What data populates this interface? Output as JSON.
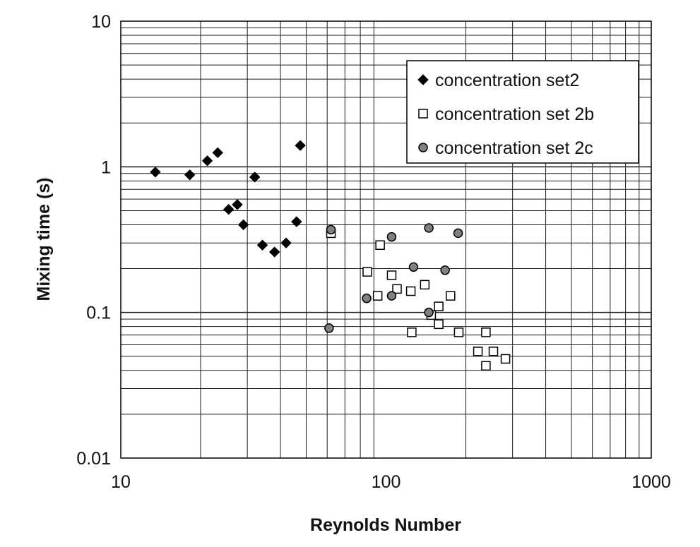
{
  "chart_data": {
    "type": "scatter",
    "xlabel": "Reynolds Number",
    "ylabel": "Mixing time (s)",
    "xscale": "log",
    "yscale": "log",
    "xlim": [
      10,
      1000
    ],
    "ylim": [
      0.01,
      10
    ],
    "x_ticks": [
      {
        "value": 10,
        "label": "10"
      },
      {
        "value": 100,
        "label": "100"
      },
      {
        "value": 1000,
        "label": "1000"
      }
    ],
    "y_ticks": [
      {
        "value": 0.01,
        "label": "0.01"
      },
      {
        "value": 0.1,
        "label": "0.1"
      },
      {
        "value": 1,
        "label": "1"
      },
      {
        "value": 10,
        "label": "10"
      }
    ],
    "grid": true,
    "legend_position": "top-right",
    "series": [
      {
        "name": "concentration set2",
        "marker": "diamond",
        "color": "#000000",
        "points": [
          {
            "x": 13.5,
            "y": 0.92
          },
          {
            "x": 18.2,
            "y": 0.88
          },
          {
            "x": 21.2,
            "y": 1.1
          },
          {
            "x": 23.2,
            "y": 1.25
          },
          {
            "x": 25.5,
            "y": 0.51
          },
          {
            "x": 27.5,
            "y": 0.55
          },
          {
            "x": 29.0,
            "y": 0.4
          },
          {
            "x": 32.0,
            "y": 0.85
          },
          {
            "x": 34.2,
            "y": 0.29
          },
          {
            "x": 38.0,
            "y": 0.26
          },
          {
            "x": 42.0,
            "y": 0.3
          },
          {
            "x": 46.0,
            "y": 0.42
          },
          {
            "x": 47.5,
            "y": 1.4
          }
        ]
      },
      {
        "name": "concentration set 2b",
        "marker": "square",
        "color": "#ffffff",
        "points": [
          {
            "x": 62.0,
            "y": 0.35
          },
          {
            "x": 85.0,
            "y": 0.19
          },
          {
            "x": 93.0,
            "y": 0.13
          },
          {
            "x": 95.0,
            "y": 0.29
          },
          {
            "x": 105.0,
            "y": 0.18
          },
          {
            "x": 110.0,
            "y": 0.145
          },
          {
            "x": 124.0,
            "y": 0.14
          },
          {
            "x": 125.0,
            "y": 0.073
          },
          {
            "x": 140.0,
            "y": 0.155
          },
          {
            "x": 148.0,
            "y": 0.096
          },
          {
            "x": 158.0,
            "y": 0.083
          },
          {
            "x": 158.0,
            "y": 0.11
          },
          {
            "x": 175.0,
            "y": 0.13
          },
          {
            "x": 188.0,
            "y": 0.073
          },
          {
            "x": 222.0,
            "y": 0.054
          },
          {
            "x": 238.0,
            "y": 0.073
          },
          {
            "x": 238.0,
            "y": 0.043
          },
          {
            "x": 254.0,
            "y": 0.054
          },
          {
            "x": 282.0,
            "y": 0.048
          }
        ]
      },
      {
        "name": "concentration set 2c",
        "marker": "circle",
        "color": "#808080",
        "points": [
          {
            "x": 62.0,
            "y": 0.37
          },
          {
            "x": 61.0,
            "y": 0.078
          },
          {
            "x": 84.5,
            "y": 0.125
          },
          {
            "x": 105.0,
            "y": 0.33
          },
          {
            "x": 105.0,
            "y": 0.13
          },
          {
            "x": 127.0,
            "y": 0.205
          },
          {
            "x": 145.0,
            "y": 0.38
          },
          {
            "x": 145.0,
            "y": 0.1
          },
          {
            "x": 167.0,
            "y": 0.195
          },
          {
            "x": 187.0,
            "y": 0.35
          }
        ]
      }
    ]
  }
}
